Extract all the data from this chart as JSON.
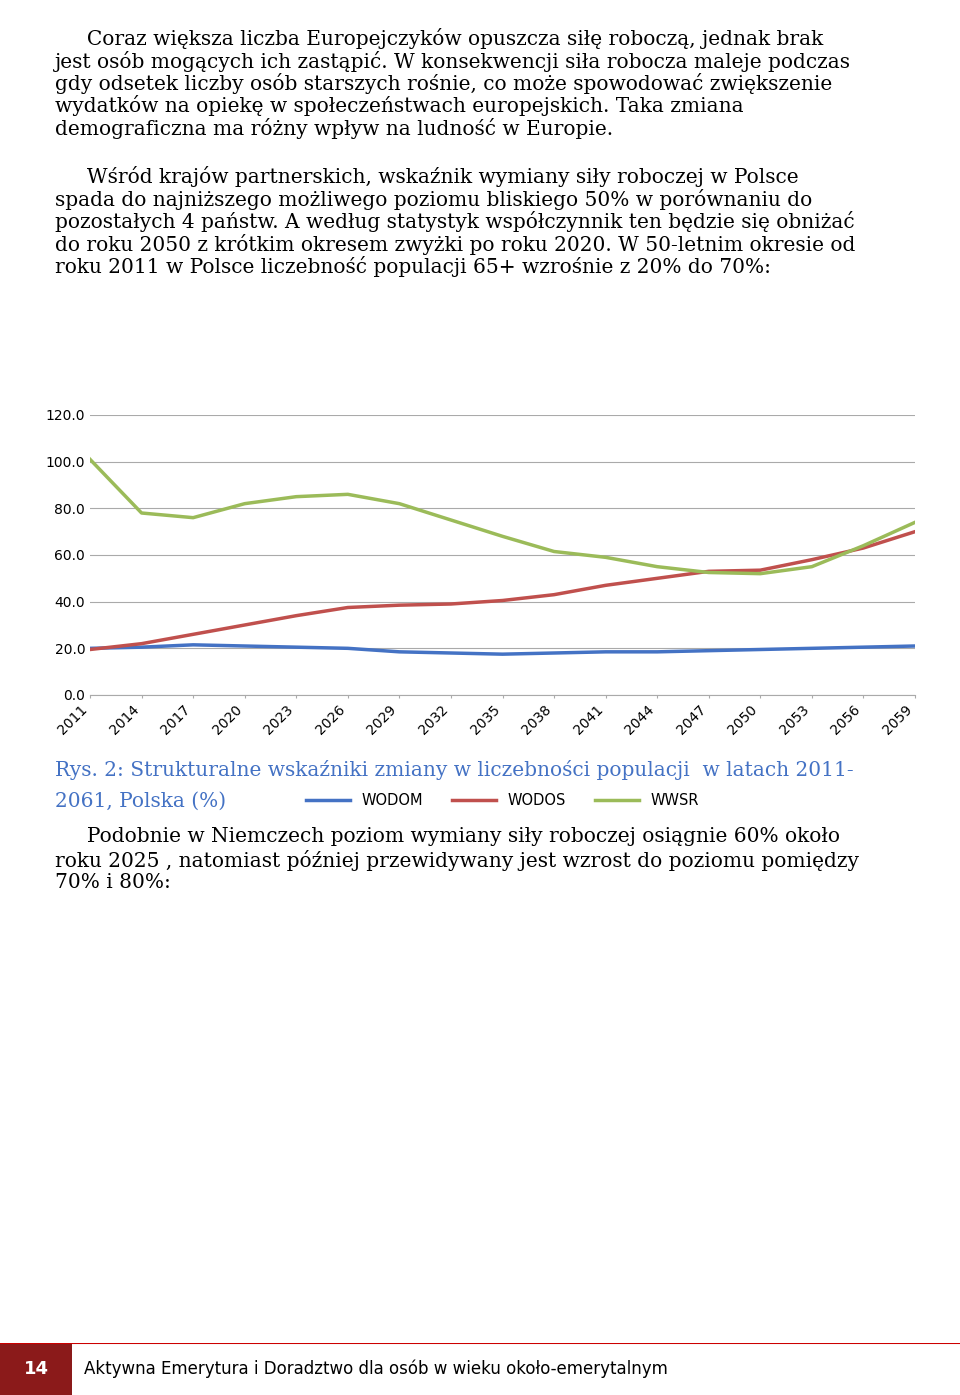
{
  "para1_lines": [
    "     Coraz większa liczba Europejczyków opuszcza siłę roboczą, jednak brak",
    "jest osób mogących ich zastąpić. W konsekwencji siła robocza maleje podczas",
    "gdy odsetek liczby osób starszych rośnie, co może spowodować zwiększenie",
    "wydatków na opiekę w społeczeństwach europejskich. Taka zmiana",
    "demograficzna ma różny wpływ na ludność w Europie."
  ],
  "para2_lines": [
    "     Wśród krajów partnerskich, wskaźnik wymiany siły roboczej w Polsce",
    "spada do najniższego możliwego poziomu bliskiego 50% w porównaniu do",
    "pozostałych 4 państw. A według statystyk współczynnik ten będzie się obniżać",
    "do roku 2050 z krótkim okresem zwyżki po roku 2020. W 50-letnim okresie od",
    "roku 2011 w Polsce liczebność populacji 65+ wzrośnie z 20% do 70%:"
  ],
  "caption_line1": "Rys. 2: Strukturalne wskaźniki zmiany w liczebności populacji  w latach 2011-",
  "caption_line2": "2061, Polska (%)",
  "para3_lines": [
    "     Podobnie w Niemczech poziom wymiany siły roboczej osiągnie 60% około",
    "roku 2025 , natomiast później przewidywany jest wzrost do poziomu pomiędzy",
    "70% i 80%:"
  ],
  "footer_num": "14",
  "footer_text": "Aktywna Emerytura i Doradztwo dla osób w wieku około-emerytalnym",
  "years": [
    2011,
    2014,
    2017,
    2020,
    2023,
    2026,
    2029,
    2032,
    2035,
    2038,
    2041,
    2044,
    2047,
    2050,
    2053,
    2056,
    2059
  ],
  "WODOM": [
    20.0,
    20.5,
    21.5,
    21.0,
    20.5,
    20.0,
    18.5,
    18.0,
    17.5,
    18.0,
    18.5,
    18.5,
    19.0,
    19.5,
    20.0,
    20.5,
    21.0
  ],
  "WODOS": [
    19.5,
    22.0,
    26.0,
    30.0,
    34.0,
    37.5,
    38.5,
    39.0,
    40.5,
    43.0,
    47.0,
    50.0,
    53.0,
    53.5,
    58.0,
    63.0,
    70.0
  ],
  "WWSR": [
    101.0,
    78.0,
    76.0,
    82.0,
    85.0,
    86.0,
    82.0,
    75.0,
    68.0,
    61.5,
    59.0,
    55.0,
    52.5,
    52.0,
    55.0,
    64.0,
    74.0
  ],
  "wodom_color": "#4472C4",
  "wodos_color": "#C0504D",
  "wwsr_color": "#9BBB59",
  "ylim": [
    0,
    120
  ],
  "yticks": [
    0.0,
    20.0,
    40.0,
    60.0,
    80.0,
    100.0,
    120.0
  ],
  "bg_color": "#FFFFFF",
  "grid_color": "#AAAAAA",
  "text_color": "#000000",
  "caption_color": "#4472C4",
  "body_fontsize": 14.5,
  "caption_fontsize": 14.5,
  "footer_fontsize": 12,
  "axis_fontsize": 10,
  "legend_fontsize": 10.5
}
